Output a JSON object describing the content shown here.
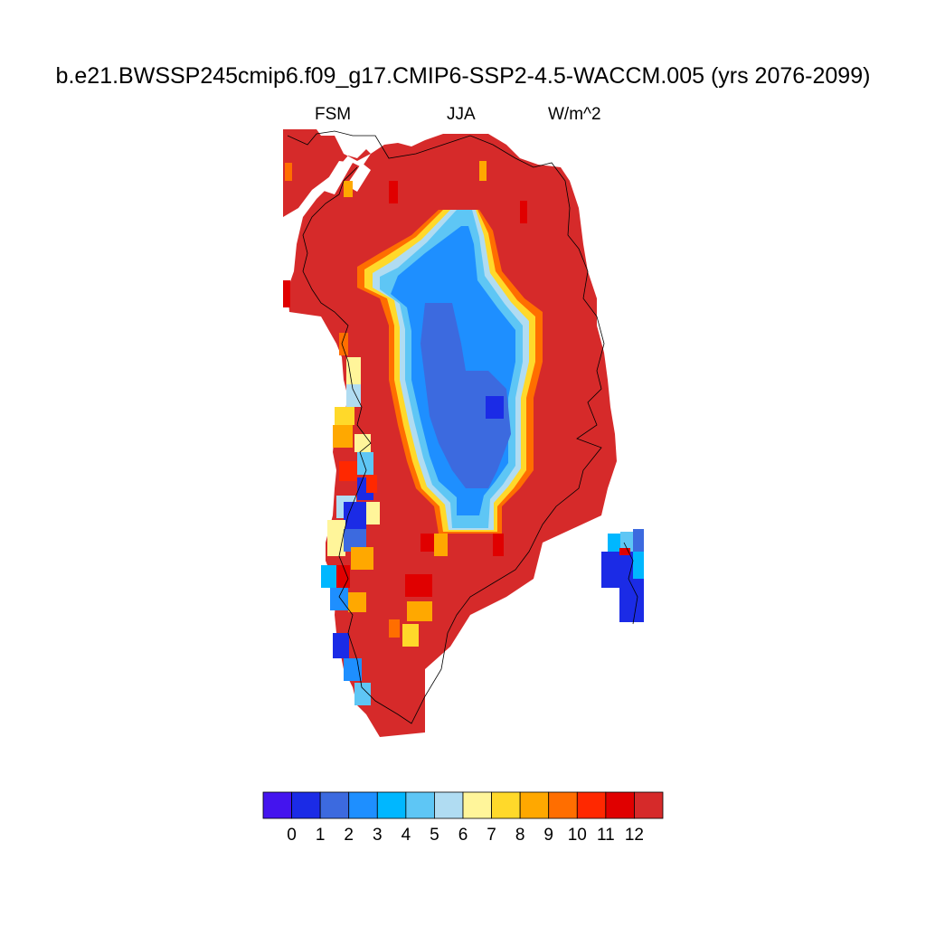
{
  "title": "b.e21.BWSSP245cmip6.f09_g17.CMIP6-SSP2-4.5-WACCM.005 (yrs 2076-2099)",
  "left_label": "FSM",
  "center_label": "JJA",
  "right_label": "W/m^2",
  "colorbar": {
    "colors": [
      "#4414ee",
      "#1b2be6",
      "#3c6adf",
      "#1e8fff",
      "#00b7ff",
      "#5ec6f5",
      "#b0dcf2",
      "#fff59a",
      "#ffd92a",
      "#ffa800",
      "#ff6e00",
      "#ff2800",
      "#e00000",
      "#d62a2a"
    ],
    "tick_labels": [
      "0",
      "1",
      "2",
      "3",
      "4",
      "5",
      "6",
      "7",
      "8",
      "9",
      "10",
      "11",
      "12"
    ]
  },
  "map": {
    "region": "Greenland",
    "field": "FSM",
    "season": "JJA",
    "units": "W/m^2",
    "ice_sheet_interior_range": [
      1,
      6
    ],
    "margin_value": 12
  }
}
